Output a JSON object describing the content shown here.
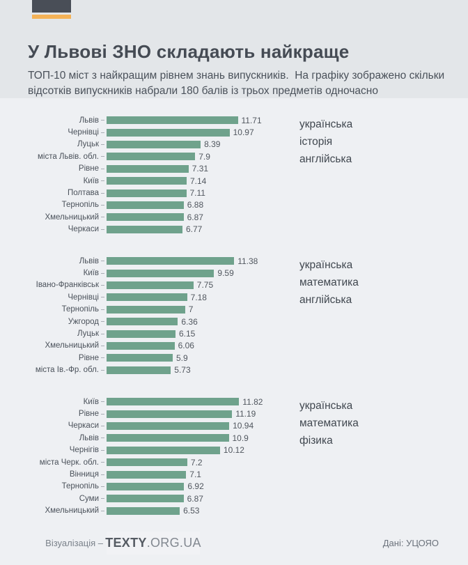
{
  "header": {
    "title": "У Львові ЗНО складають найкраще",
    "subtitle": "ТОП-10 міст з найкращим рівнем знань випускників.  На графіку зображено скільки відсотків випускників набрали 180 балів із трьох предметів одночасно"
  },
  "footer": {
    "viz_label": "Візуалізація –",
    "brand_bold": "TEXTY",
    "brand_rest": ".ORG.UA",
    "source": "Дані: УЦОЯО"
  },
  "colors": {
    "bar": "#6fa28c",
    "accent_orange": "#f4b257",
    "brand_dark": "#494e57",
    "header_background": "#e3e6e9",
    "page_background": "#eef0f3"
  },
  "chart_data": [
    {
      "type": "bar",
      "orientation": "horizontal",
      "subjects": [
        "українська",
        "історія",
        "англійська"
      ],
      "categories": [
        "Львів",
        "Чернівці",
        "Луцьк",
        "міста Львів. обл.",
        "Рівне",
        "Київ",
        "Полтава",
        "Тернопіль",
        "Хмельницький",
        "Черкаси"
      ],
      "values": [
        11.71,
        10.97,
        8.39,
        7.9,
        7.31,
        7.14,
        7.11,
        6.88,
        6.87,
        6.77
      ],
      "xlim": [
        0,
        12
      ],
      "grid": false,
      "legend_position": "right"
    },
    {
      "type": "bar",
      "orientation": "horizontal",
      "subjects": [
        "українська",
        "математика",
        "англійська"
      ],
      "categories": [
        "Львів",
        "Київ",
        "Івано-Франківськ",
        "Чернівці",
        "Тернопіль",
        "Ужгород",
        "Луцьк",
        "Хмельницький",
        "Рівне",
        "міста Ів.-Фр. обл."
      ],
      "values": [
        11.38,
        9.59,
        7.75,
        7.18,
        7,
        6.36,
        6.15,
        6.06,
        5.9,
        5.73
      ],
      "xlim": [
        0,
        12
      ],
      "grid": false,
      "legend_position": "right"
    },
    {
      "type": "bar",
      "orientation": "horizontal",
      "subjects": [
        "українська",
        "математика",
        "фізика"
      ],
      "categories": [
        "Київ",
        "Рівне",
        "Черкаси",
        "Львів",
        "Чернігів",
        "міста Черк. обл.",
        "Вінниця",
        "Тернопіль",
        "Суми",
        "Хмельницький"
      ],
      "values": [
        11.82,
        11.19,
        10.94,
        10.9,
        10.12,
        7.2,
        7.1,
        6.92,
        6.87,
        6.53
      ],
      "xlim": [
        0,
        12
      ],
      "grid": false,
      "legend_position": "right"
    }
  ]
}
